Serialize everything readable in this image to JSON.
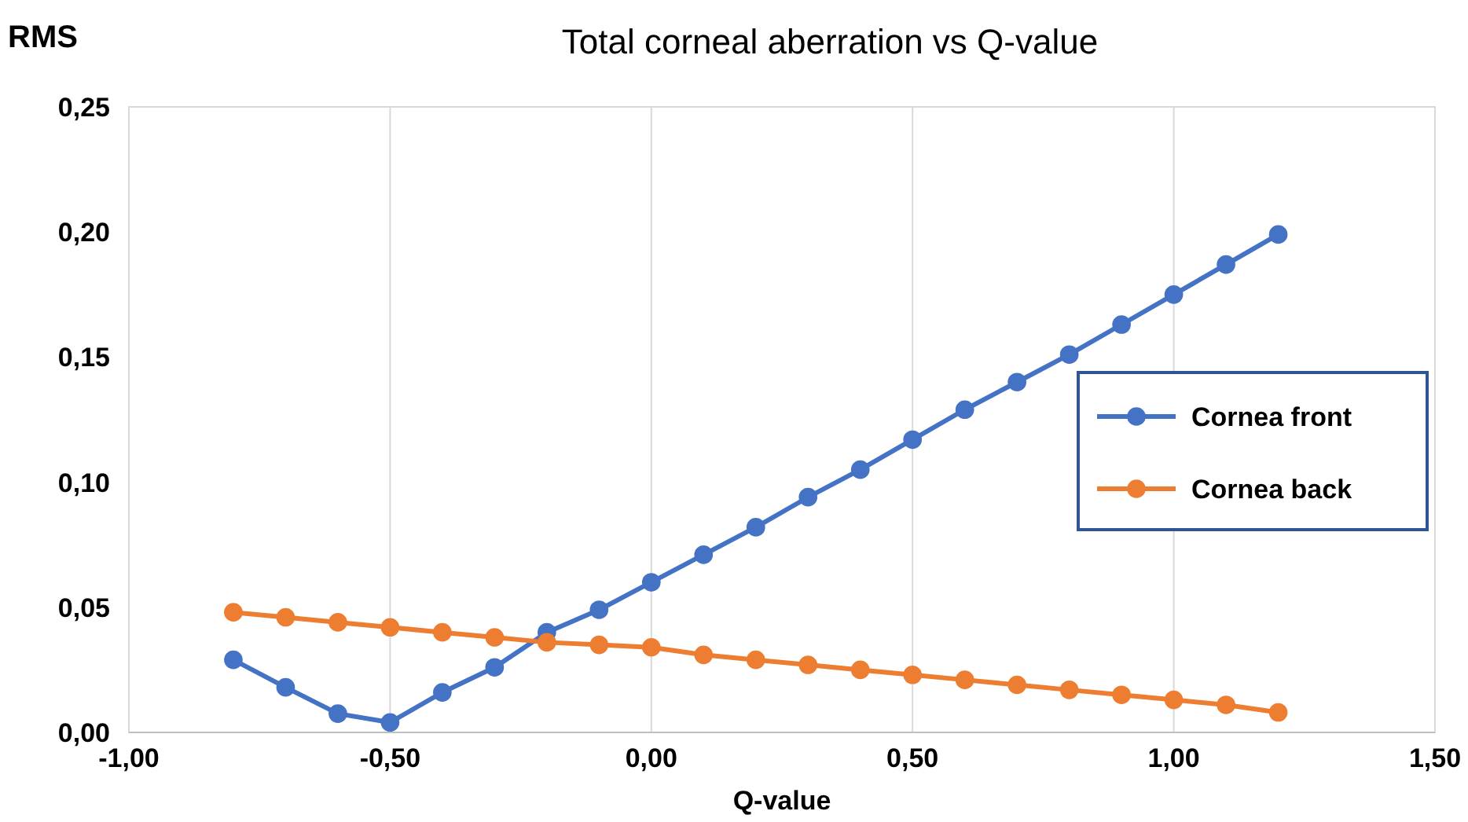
{
  "chart_data": {
    "type": "line",
    "title": "Total corneal aberration vs Q-value",
    "xlabel": "Q-value",
    "ylabel": "RMS",
    "x": [
      -0.8,
      -0.7,
      -0.6,
      -0.5,
      -0.4,
      -0.3,
      -0.2,
      -0.1,
      0,
      0.1,
      0.2,
      0.3,
      0.4,
      0.5,
      0.6,
      0.7,
      0.8,
      0.9,
      1.0,
      1.1,
      1.2
    ],
    "series": [
      {
        "name": "Cornea front",
        "color": "#4472c4",
        "values": [
          0.029,
          0.018,
          0.0075,
          0.004,
          0.016,
          0.026,
          0.04,
          0.049,
          0.06,
          0.071,
          0.082,
          0.094,
          0.105,
          0.117,
          0.129,
          0.14,
          0.151,
          0.163,
          0.175,
          0.187,
          0.199
        ]
      },
      {
        "name": "Cornea back",
        "color": "#ed7d31",
        "values": [
          0.048,
          0.046,
          0.044,
          0.042,
          0.04,
          0.038,
          0.036,
          0.035,
          0.034,
          0.031,
          0.029,
          0.027,
          0.025,
          0.023,
          0.021,
          0.019,
          0.017,
          0.015,
          0.013,
          0.011,
          0.008
        ]
      }
    ],
    "xlim": [
      -1,
      1.5
    ],
    "xticks": [
      {
        "value": -1,
        "label": "-1,00"
      },
      {
        "value": -0.5,
        "label": "-0,50"
      },
      {
        "value": 0,
        "label": "0,00"
      },
      {
        "value": 0.5,
        "label": "0,50"
      },
      {
        "value": 1,
        "label": "1,00"
      },
      {
        "value": 1.5,
        "label": "1,50"
      }
    ],
    "ylim": [
      0,
      0.25
    ],
    "yticks": [
      {
        "value": 0,
        "label": "0,00"
      },
      {
        "value": 0.05,
        "label": "0,05"
      },
      {
        "value": 0.1,
        "label": "0,10"
      },
      {
        "value": 0.15,
        "label": "0,15"
      },
      {
        "value": 0.2,
        "label": "0,20"
      },
      {
        "value": 0.25,
        "label": "0,25"
      }
    ],
    "grid": "x",
    "legend": "right",
    "marker": "circle",
    "line_style": "solid"
  }
}
